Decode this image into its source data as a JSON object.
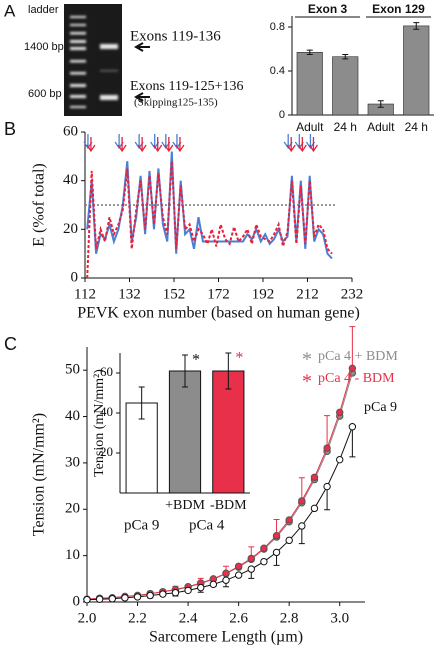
{
  "gel": {
    "panel_label": "A",
    "ladder": "ladder",
    "markers": [
      "1400 bp",
      "600 bp"
    ],
    "bands": [
      "Exons 119-136",
      "Exons 119-125+136",
      "(Skipping125-135)"
    ]
  },
  "chart_data": [
    {
      "type": "bar",
      "groups": [
        "Exon 3",
        "Exon 129"
      ],
      "categories": [
        "Adult",
        "24 h",
        "Adult",
        "24 h"
      ],
      "values": [
        0.57,
        0.53,
        0.1,
        0.81
      ],
      "errors": [
        0.02,
        0.02,
        0.03,
        0.03
      ],
      "color": "#8c8c8c",
      "ylim": [
        0,
        0.9
      ],
      "yticks": [
        0,
        0.4,
        0.8
      ]
    },
    {
      "type": "line",
      "panel_label": "B",
      "x_label": "PEVK exon number (based on human gene)",
      "y_label": "E (%of total)",
      "x": [
        113,
        115,
        117,
        119,
        121,
        123,
        125,
        127,
        129,
        131,
        133,
        135,
        137,
        139,
        141,
        143,
        145,
        147,
        149,
        151,
        153,
        155,
        157,
        159,
        161,
        163,
        165,
        167,
        169,
        171,
        173,
        175,
        177,
        179,
        181,
        183,
        185,
        187,
        189,
        191,
        193,
        195,
        197,
        199,
        201,
        203,
        205,
        207,
        209,
        211,
        213,
        215,
        217,
        219,
        221,
        223
      ],
      "series": [
        {
          "color": "#4a7fd6",
          "style": "solid",
          "values": [
            20,
            40,
            10,
            18,
            16,
            22,
            15,
            20,
            30,
            48,
            15,
            25,
            42,
            18,
            44,
            20,
            45,
            22,
            15,
            52,
            10,
            40,
            18,
            20,
            12,
            25,
            15,
            15,
            15,
            15,
            15,
            15,
            15,
            15,
            15,
            15,
            18,
            16,
            20,
            15,
            18,
            14,
            16,
            20,
            15,
            17,
            42,
            15,
            40,
            12,
            42,
            15,
            20,
            18,
            10,
            8
          ]
        },
        {
          "color": "#e8213a",
          "style": "dashed",
          "values": [
            0,
            44,
            12,
            20,
            15,
            25,
            18,
            22,
            28,
            45,
            12,
            28,
            40,
            20,
            42,
            22,
            43,
            25,
            18,
            48,
            12,
            38,
            20,
            22,
            15,
            20,
            18,
            14,
            20,
            13,
            22,
            16,
            14,
            21,
            15,
            17,
            20,
            14,
            22,
            17,
            16,
            15,
            18,
            22,
            13,
            19,
            40,
            14,
            38,
            14,
            40,
            17,
            22,
            20,
            12,
            10
          ]
        }
      ],
      "arrows": [
        114,
        128,
        137,
        144,
        149,
        154,
        204,
        209,
        214
      ],
      "reference_line": 30,
      "xlim": [
        112,
        232
      ],
      "xticks": [
        112,
        132,
        152,
        172,
        192,
        212,
        232
      ],
      "ylim": [
        0,
        60
      ],
      "yticks": [
        0,
        20,
        40,
        60
      ]
    },
    {
      "type": "line",
      "panel_label": "C",
      "x_label": "Sarcomere Length (µm)",
      "y_label": "Tension (mN/mm²)",
      "x": [
        2.0,
        2.05,
        2.1,
        2.15,
        2.2,
        2.25,
        2.3,
        2.35,
        2.4,
        2.45,
        2.5,
        2.55,
        2.6,
        2.65,
        2.7,
        2.75,
        2.8,
        2.85,
        2.9,
        2.95,
        3.0,
        3.05
      ],
      "series": [
        {
          "name": "pCa 4 + BDM",
          "marker_label": "*",
          "color": "#8c8c8c",
          "marker": "filled",
          "values": [
            0.6,
            0.8,
            0.9,
            1.2,
            1.4,
            1.8,
            2.2,
            2.6,
            3.2,
            4.0,
            4.9,
            6.1,
            7.5,
            9.2,
            11.4,
            14.0,
            17.3,
            21.4,
            26.4,
            32.5,
            40.1,
            49.4
          ]
        },
        {
          "name": "pCa 4 - BDM",
          "marker_label": "*",
          "color": "#e8304a",
          "marker": "filled",
          "error_direction": "up",
          "values": [
            0.6,
            0.8,
            0.9,
            1.2,
            1.4,
            1.8,
            2.2,
            2.7,
            3.3,
            4.1,
            5.0,
            6.2,
            7.7,
            9.4,
            11.6,
            14.3,
            17.7,
            21.8,
            26.9,
            33.2,
            40.9,
            50.4
          ],
          "errors": [
            0.2,
            0.2,
            0.3,
            0.3,
            0.4,
            0.5,
            0.6,
            0.7,
            0.8,
            1.0,
            1.2,
            1.5,
            2.0,
            2.5,
            3.0,
            3.5,
            4.0,
            5.0,
            6.0,
            7.0,
            8.0,
            9.0
          ]
        },
        {
          "name": "pCa 9",
          "color": "#111111",
          "marker": "open",
          "error_direction": "down",
          "values": [
            0.5,
            0.6,
            0.7,
            0.9,
            1.1,
            1.4,
            1.7,
            2.0,
            2.5,
            3.1,
            3.8,
            4.7,
            5.8,
            7.1,
            8.7,
            10.7,
            13.3,
            16.4,
            20.2,
            24.9,
            30.7,
            37.8
          ],
          "errors": [
            0.2,
            0.2,
            0.3,
            0.3,
            0.4,
            0.5,
            0.6,
            0.7,
            0.8,
            1.0,
            1.2,
            1.4,
            1.7,
            2.0,
            2.4,
            2.8,
            3.3,
            3.8,
            4.4,
            5.0,
            5.8,
            6.5
          ]
        }
      ],
      "xlim": [
        2.0,
        3.1
      ],
      "xticks": [
        {
          "value": 2,
          "label": "2.0"
        },
        2.2,
        2.4,
        2.6,
        2.8,
        {
          "value": 3,
          "label": "3.0"
        }
      ],
      "ylim": [
        0,
        55
      ],
      "yticks": [
        0,
        10,
        20,
        30,
        40,
        50
      ]
    },
    {
      "type": "bar",
      "y_label": "Tension (mN/mm²)",
      "groups": [
        "pCa 9",
        "pCa 4"
      ],
      "categories": [
        null,
        "+BDM",
        "-BDM"
      ],
      "values": [
        45,
        61,
        61
      ],
      "errors": [
        8,
        8,
        9
      ],
      "colors": [
        "#ffffff",
        "#8c8c8c",
        "#e8304a"
      ],
      "bar_annotations": [
        null,
        "*",
        "*"
      ],
      "annotation_colors": [
        null,
        "#111111",
        "#e8304a"
      ],
      "ylim": [
        0,
        70
      ],
      "yticks": [
        20,
        40,
        60
      ]
    }
  ]
}
